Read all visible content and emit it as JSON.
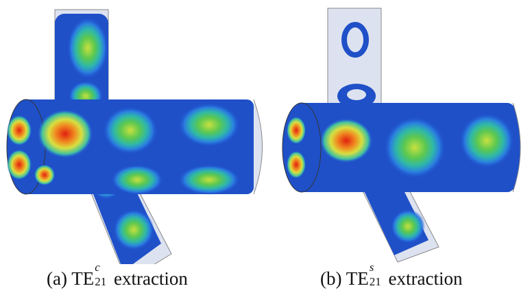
{
  "panels": [
    {
      "label": "(a)",
      "mode": "TE",
      "superscript": "c",
      "subscript": "21",
      "text": "extraction"
    },
    {
      "label": "(b)",
      "mode": "TE",
      "superscript": "s",
      "subscript": "21",
      "text": "extraction"
    }
  ]
}
